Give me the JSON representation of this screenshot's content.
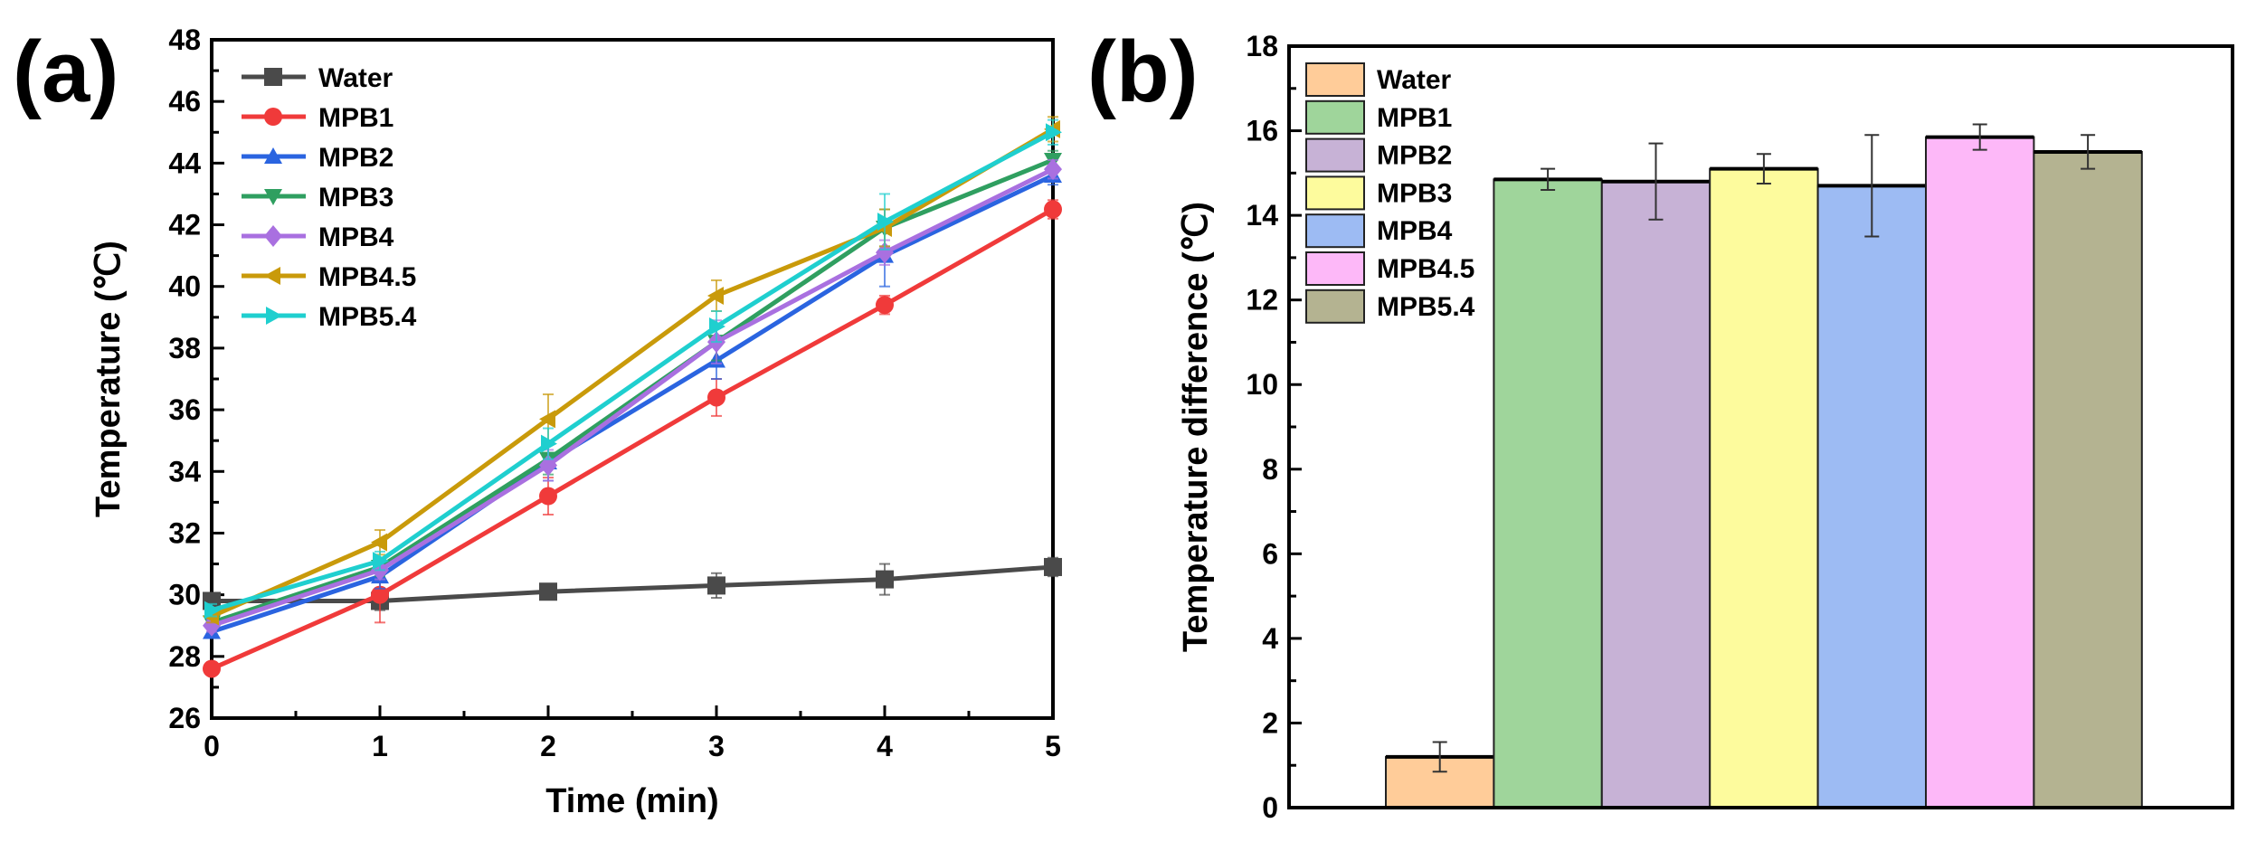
{
  "chart_data": [
    {
      "type": "line",
      "panel_label": "(a)",
      "xlabel": "Time (min)",
      "ylabel": "Temperature (℃)",
      "xlim": [
        0,
        5
      ],
      "ylim": [
        26,
        48
      ],
      "xticks": [
        "0",
        "1",
        "2",
        "3",
        "4",
        "5"
      ],
      "yticks": [
        "26",
        "28",
        "30",
        "32",
        "34",
        "36",
        "38",
        "40",
        "42",
        "44",
        "46",
        "48"
      ],
      "legend_position": "top-left",
      "x": [
        0,
        1,
        2,
        3,
        4,
        5
      ],
      "series": [
        {
          "name": "Water",
          "color": "#4a4a4a",
          "marker": "square",
          "values": [
            29.8,
            29.8,
            30.1,
            30.3,
            30.5,
            30.9
          ],
          "errors": [
            0.2,
            0.3,
            0.2,
            0.4,
            0.5,
            0.3
          ]
        },
        {
          "name": "MPB1",
          "color": "#f03a3a",
          "marker": "circle",
          "values": [
            27.6,
            30.0,
            33.2,
            36.4,
            39.4,
            42.5
          ],
          "errors": [
            0.2,
            0.9,
            0.6,
            0.6,
            0.3,
            0.3
          ]
        },
        {
          "name": "MPB2",
          "color": "#2a64e0",
          "marker": "triangle-up",
          "values": [
            28.8,
            30.6,
            34.3,
            37.6,
            41.0,
            43.6
          ],
          "errors": [
            0.2,
            0.4,
            0.6,
            0.6,
            1.0,
            0.3
          ]
        },
        {
          "name": "MPB3",
          "color": "#2f9f60",
          "marker": "triangle-down",
          "values": [
            29.1,
            30.9,
            34.4,
            38.2,
            41.9,
            44.1
          ],
          "errors": [
            0.2,
            0.3,
            0.5,
            0.6,
            0.6,
            0.3
          ]
        },
        {
          "name": "MPB4",
          "color": "#a970e0",
          "marker": "diamond",
          "values": [
            29.0,
            30.8,
            34.2,
            38.2,
            41.1,
            43.8
          ],
          "errors": [
            0.2,
            0.3,
            0.5,
            0.7,
            0.4,
            0.3
          ]
        },
        {
          "name": "MPB4.5",
          "color": "#c99a0a",
          "marker": "triangle-left",
          "values": [
            29.3,
            31.7,
            35.7,
            39.7,
            41.9,
            45.1
          ],
          "errors": [
            0.2,
            0.4,
            0.8,
            0.5,
            0.6,
            0.4
          ]
        },
        {
          "name": "MPB5.4",
          "color": "#1fcfcf",
          "marker": "triangle-right",
          "values": [
            29.5,
            31.1,
            34.9,
            38.7,
            42.1,
            45.0
          ],
          "errors": [
            0.2,
            0.3,
            0.5,
            0.5,
            0.9,
            0.4
          ]
        }
      ]
    },
    {
      "type": "bar",
      "panel_label": "(b)",
      "xlabel": "",
      "ylabel": "Temperature difference (℃)",
      "ylim": [
        0,
        18
      ],
      "yticks": [
        "0",
        "2",
        "4",
        "6",
        "8",
        "10",
        "12",
        "14",
        "16",
        "18"
      ],
      "legend_position": "top-left",
      "categories": [
        "Water",
        "MPB1",
        "MPB2",
        "MPB3",
        "MPB4",
        "MPB4.5",
        "MPB5.4"
      ],
      "values": [
        1.2,
        14.85,
        14.8,
        15.1,
        14.7,
        15.85,
        15.5
      ],
      "errors": [
        0.35,
        0.25,
        0.9,
        0.35,
        1.2,
        0.3,
        0.4
      ],
      "colors": [
        "#FFCC99",
        "#9FD59B",
        "#C7B2D6",
        "#FDFB9D",
        "#9DBBF3",
        "#FDB8F8",
        "#B4B391"
      ]
    }
  ]
}
